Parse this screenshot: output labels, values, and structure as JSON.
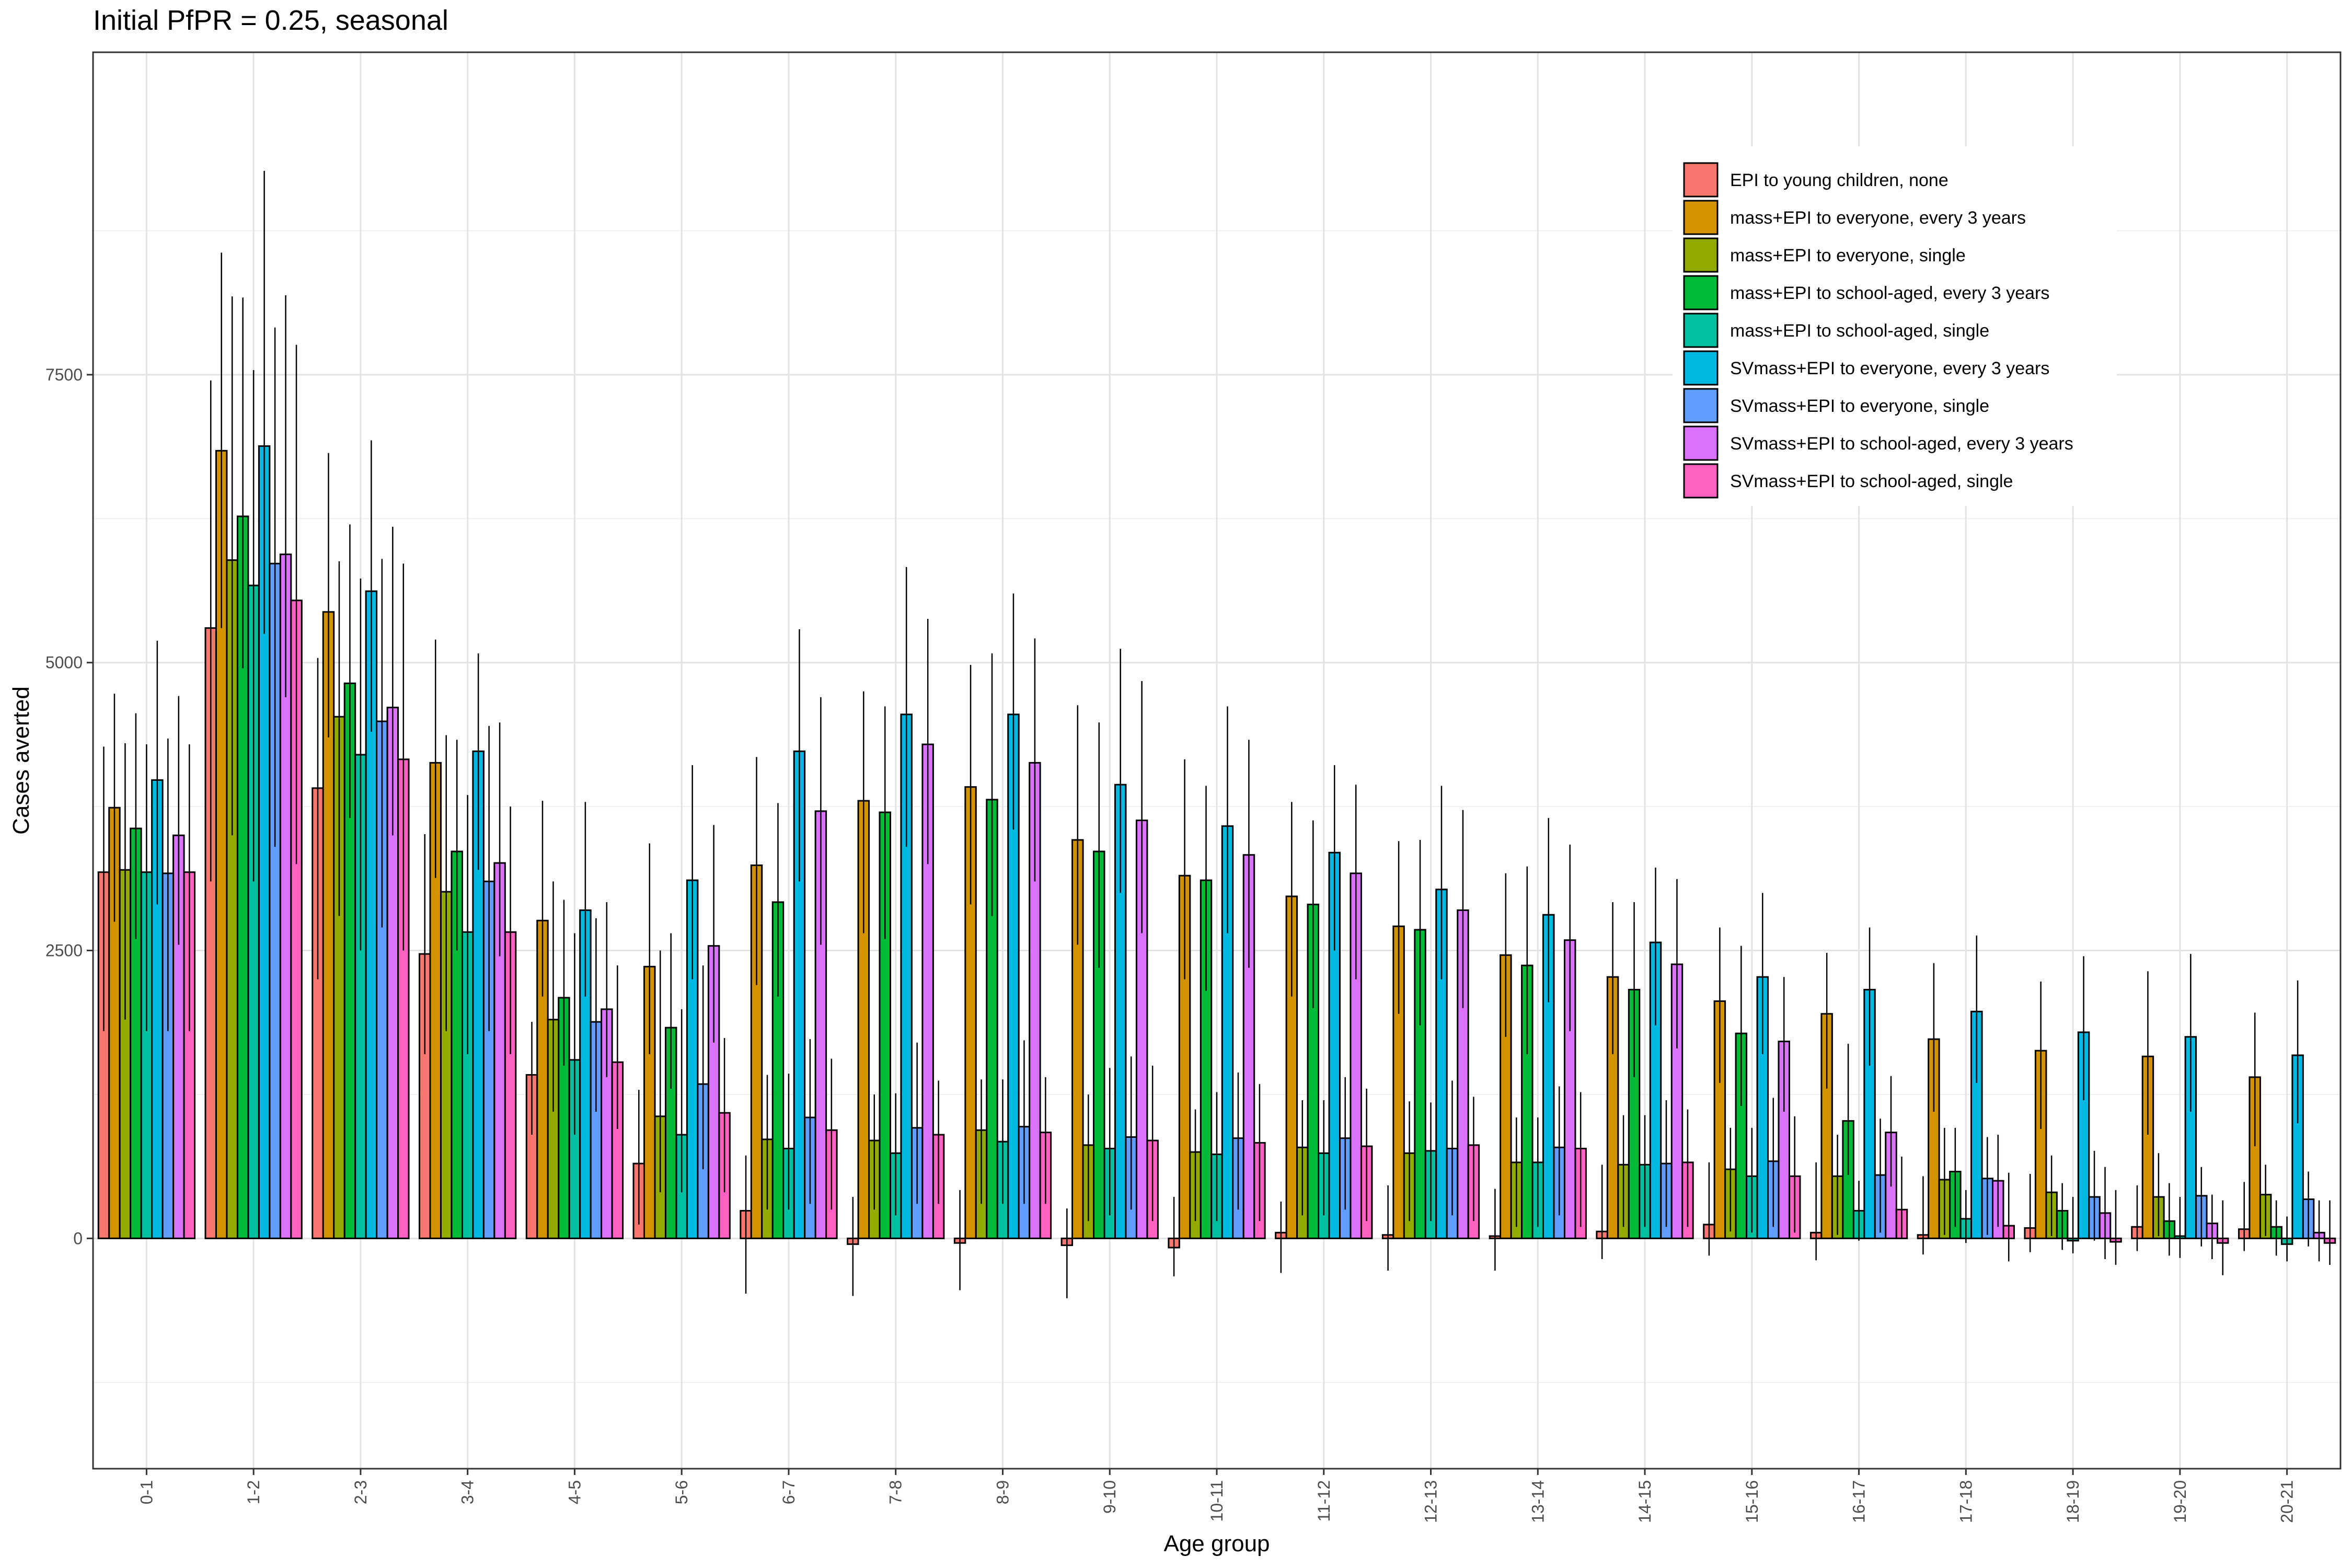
{
  "chart_data": {
    "type": "bar",
    "title": "Initial PfPR = 0.25, seasonal",
    "xlabel": "Age group",
    "ylabel": "Cases averted",
    "ylim": [
      -2000,
      10300
    ],
    "yticks": [
      0,
      2500,
      5000,
      7500
    ],
    "grid": true,
    "legend_position": "top-right (inside plot)",
    "categories": [
      "0-1",
      "1-2",
      "2-3",
      "3-4",
      "4-5",
      "5-6",
      "6-7",
      "7-8",
      "8-9",
      "9-10",
      "10-11",
      "11-12",
      "12-13",
      "13-14",
      "14-15",
      "15-16",
      "16-17",
      "17-18",
      "18-19",
      "19-20",
      "20-21"
    ],
    "series": [
      {
        "name": "EPI to young children, none",
        "color": "#F8766D",
        "values": [
          3180,
          5300,
          3910,
          2470,
          1420,
          650,
          240,
          -50,
          -40,
          -60,
          -80,
          50,
          30,
          20,
          60,
          120,
          50,
          30,
          90,
          100,
          80
        ],
        "lower": [
          1800,
          3100,
          2250,
          1600,
          900,
          120,
          -480,
          -500,
          -450,
          -520,
          -330,
          -300,
          -280,
          -280,
          -180,
          -150,
          -190,
          -140,
          -120,
          -110,
          -110
        ],
        "upper": [
          4270,
          7450,
          5040,
          3510,
          1880,
          1290,
          720,
          360,
          420,
          260,
          360,
          320,
          460,
          430,
          640,
          660,
          660,
          540,
          560,
          460,
          490
        ]
      },
      {
        "name": "mass+EPI to everyone, every 3 years",
        "color": "#D39200",
        "values": [
          3740,
          6840,
          5440,
          4130,
          2760,
          2360,
          3240,
          3800,
          3920,
          3460,
          3150,
          2970,
          2710,
          2460,
          2270,
          2060,
          1950,
          1730,
          1630,
          1580,
          1400
        ],
        "lower": [
          2750,
          5300,
          4350,
          3130,
          2100,
          1600,
          2200,
          2650,
          2900,
          2550,
          2250,
          2100,
          1950,
          1750,
          1600,
          1350,
          1300,
          1100,
          950,
          900,
          800
        ],
        "upper": [
          4730,
          8560,
          6820,
          5200,
          3800,
          3430,
          4180,
          4750,
          4980,
          4630,
          4160,
          3790,
          3450,
          3170,
          2920,
          2700,
          2480,
          2390,
          2230,
          2320,
          1960
        ]
      },
      {
        "name": "mass+EPI to everyone, single",
        "color": "#93AA00",
        "values": [
          3200,
          5890,
          4530,
          3010,
          1900,
          1060,
          860,
          850,
          940,
          810,
          750,
          790,
          740,
          660,
          640,
          600,
          540,
          510,
          400,
          360,
          380
        ],
        "lower": [
          1900,
          3500,
          2800,
          1800,
          1100,
          400,
          250,
          250,
          300,
          150,
          150,
          200,
          150,
          100,
          100,
          60,
          30,
          30,
          20,
          20,
          20
        ],
        "upper": [
          4300,
          8180,
          5880,
          4370,
          3100,
          2500,
          1420,
          1250,
          1380,
          1250,
          1120,
          1200,
          1190,
          1050,
          1070,
          960,
          900,
          960,
          720,
          740,
          640
        ]
      },
      {
        "name": "mass+EPI to school-aged, every 3 years",
        "color": "#00BA38",
        "values": [
          3560,
          6270,
          4820,
          3360,
          2090,
          1830,
          2920,
          3700,
          3810,
          3360,
          3110,
          2900,
          2680,
          2370,
          2160,
          1780,
          1020,
          580,
          240,
          150,
          100
        ],
        "lower": [
          2600,
          4950,
          3650,
          2500,
          1500,
          1300,
          2100,
          2600,
          2800,
          2350,
          2150,
          2000,
          1850,
          1600,
          1400,
          1150,
          550,
          100,
          -100,
          -150,
          -150
        ],
        "upper": [
          4560,
          8170,
          6200,
          4330,
          2940,
          2650,
          3780,
          4620,
          5080,
          4480,
          3930,
          3630,
          3460,
          3230,
          2920,
          2540,
          1690,
          960,
          480,
          480,
          330
        ]
      },
      {
        "name": "mass+EPI to school-aged, single",
        "color": "#00C19F",
        "values": [
          3180,
          5670,
          4200,
          2660,
          1550,
          900,
          780,
          740,
          840,
          780,
          730,
          740,
          760,
          660,
          640,
          540,
          240,
          170,
          -20,
          20,
          -50
        ],
        "lower": [
          1800,
          3100,
          2500,
          1600,
          900,
          400,
          250,
          200,
          300,
          200,
          150,
          200,
          150,
          100,
          100,
          50,
          -20,
          -40,
          -130,
          -170,
          -200
        ],
        "upper": [
          4290,
          7540,
          5730,
          3850,
          2650,
          1990,
          1430,
          1260,
          1380,
          1480,
          1270,
          1200,
          1180,
          1050,
          1070,
          960,
          500,
          420,
          360,
          360,
          190
        ]
      },
      {
        "name": "SVmass+EPI to everyone, every 3 years",
        "color": "#00B9E3",
        "values": [
          3980,
          6880,
          5620,
          4230,
          2850,
          3110,
          4230,
          4550,
          4550,
          3940,
          3580,
          3350,
          3030,
          2810,
          2570,
          2270,
          2160,
          1970,
          1790,
          1750,
          1590
        ],
        "lower": [
          2900,
          5250,
          4400,
          3200,
          2100,
          2250,
          3100,
          3400,
          3550,
          3000,
          2650,
          2500,
          2250,
          2050,
          1850,
          1600,
          1500,
          1350,
          1200,
          1100,
          1000
        ],
        "upper": [
          5190,
          9270,
          6930,
          5080,
          3790,
          4110,
          5290,
          5830,
          5600,
          5120,
          4620,
          4110,
          3930,
          3650,
          3220,
          3000,
          2700,
          2630,
          2450,
          2470,
          2240
        ]
      },
      {
        "name": "SVmass+EPI to everyone, single",
        "color": "#619CFF",
        "values": [
          3170,
          5860,
          4490,
          3100,
          1880,
          1340,
          1050,
          960,
          970,
          880,
          870,
          870,
          780,
          790,
          650,
          670,
          550,
          520,
          360,
          370,
          340
        ],
        "lower": [
          1800,
          3400,
          2700,
          1800,
          1100,
          600,
          300,
          300,
          300,
          250,
          250,
          250,
          200,
          200,
          100,
          100,
          50,
          30,
          -20,
          -70,
          -70
        ],
        "upper": [
          4340,
          7910,
          5900,
          4450,
          2780,
          2370,
          1730,
          1700,
          1720,
          1580,
          1440,
          1400,
          1370,
          1320,
          1200,
          1220,
          1040,
          880,
          760,
          620,
          580
        ]
      },
      {
        "name": "SVmass+EPI to school-aged, every 3 years",
        "color": "#DB72FB",
        "values": [
          3500,
          5940,
          4610,
          3260,
          1990,
          2540,
          3710,
          4290,
          4130,
          3630,
          3330,
          3170,
          2850,
          2590,
          2380,
          1710,
          920,
          500,
          220,
          130,
          50
        ],
        "lower": [
          2550,
          4700,
          3500,
          2450,
          1400,
          1700,
          2550,
          3250,
          3100,
          2650,
          2350,
          2250,
          2000,
          1800,
          1650,
          1100,
          450,
          100,
          -180,
          -180,
          -200
        ],
        "upper": [
          4710,
          8190,
          6180,
          4480,
          2920,
          3590,
          4700,
          5380,
          5210,
          4840,
          4330,
          3940,
          3720,
          3420,
          3120,
          2270,
          1410,
          900,
          620,
          380,
          330
        ]
      },
      {
        "name": "SVmass+EPI to school-aged, single",
        "color": "#FF61C3",
        "values": [
          3180,
          5540,
          4160,
          2660,
          1530,
          1090,
          940,
          900,
          920,
          850,
          830,
          800,
          810,
          780,
          660,
          540,
          250,
          110,
          -30,
          -40,
          -40
        ],
        "lower": [
          1800,
          3250,
          2500,
          1600,
          950,
          400,
          250,
          300,
          300,
          150,
          150,
          150,
          150,
          100,
          100,
          50,
          0,
          -200,
          -230,
          -320,
          -230
        ],
        "upper": [
          4290,
          7760,
          5860,
          3750,
          2370,
          1740,
          1560,
          1370,
          1400,
          1500,
          1340,
          1300,
          1230,
          1270,
          1120,
          1060,
          710,
          570,
          420,
          330,
          330
        ]
      }
    ]
  }
}
